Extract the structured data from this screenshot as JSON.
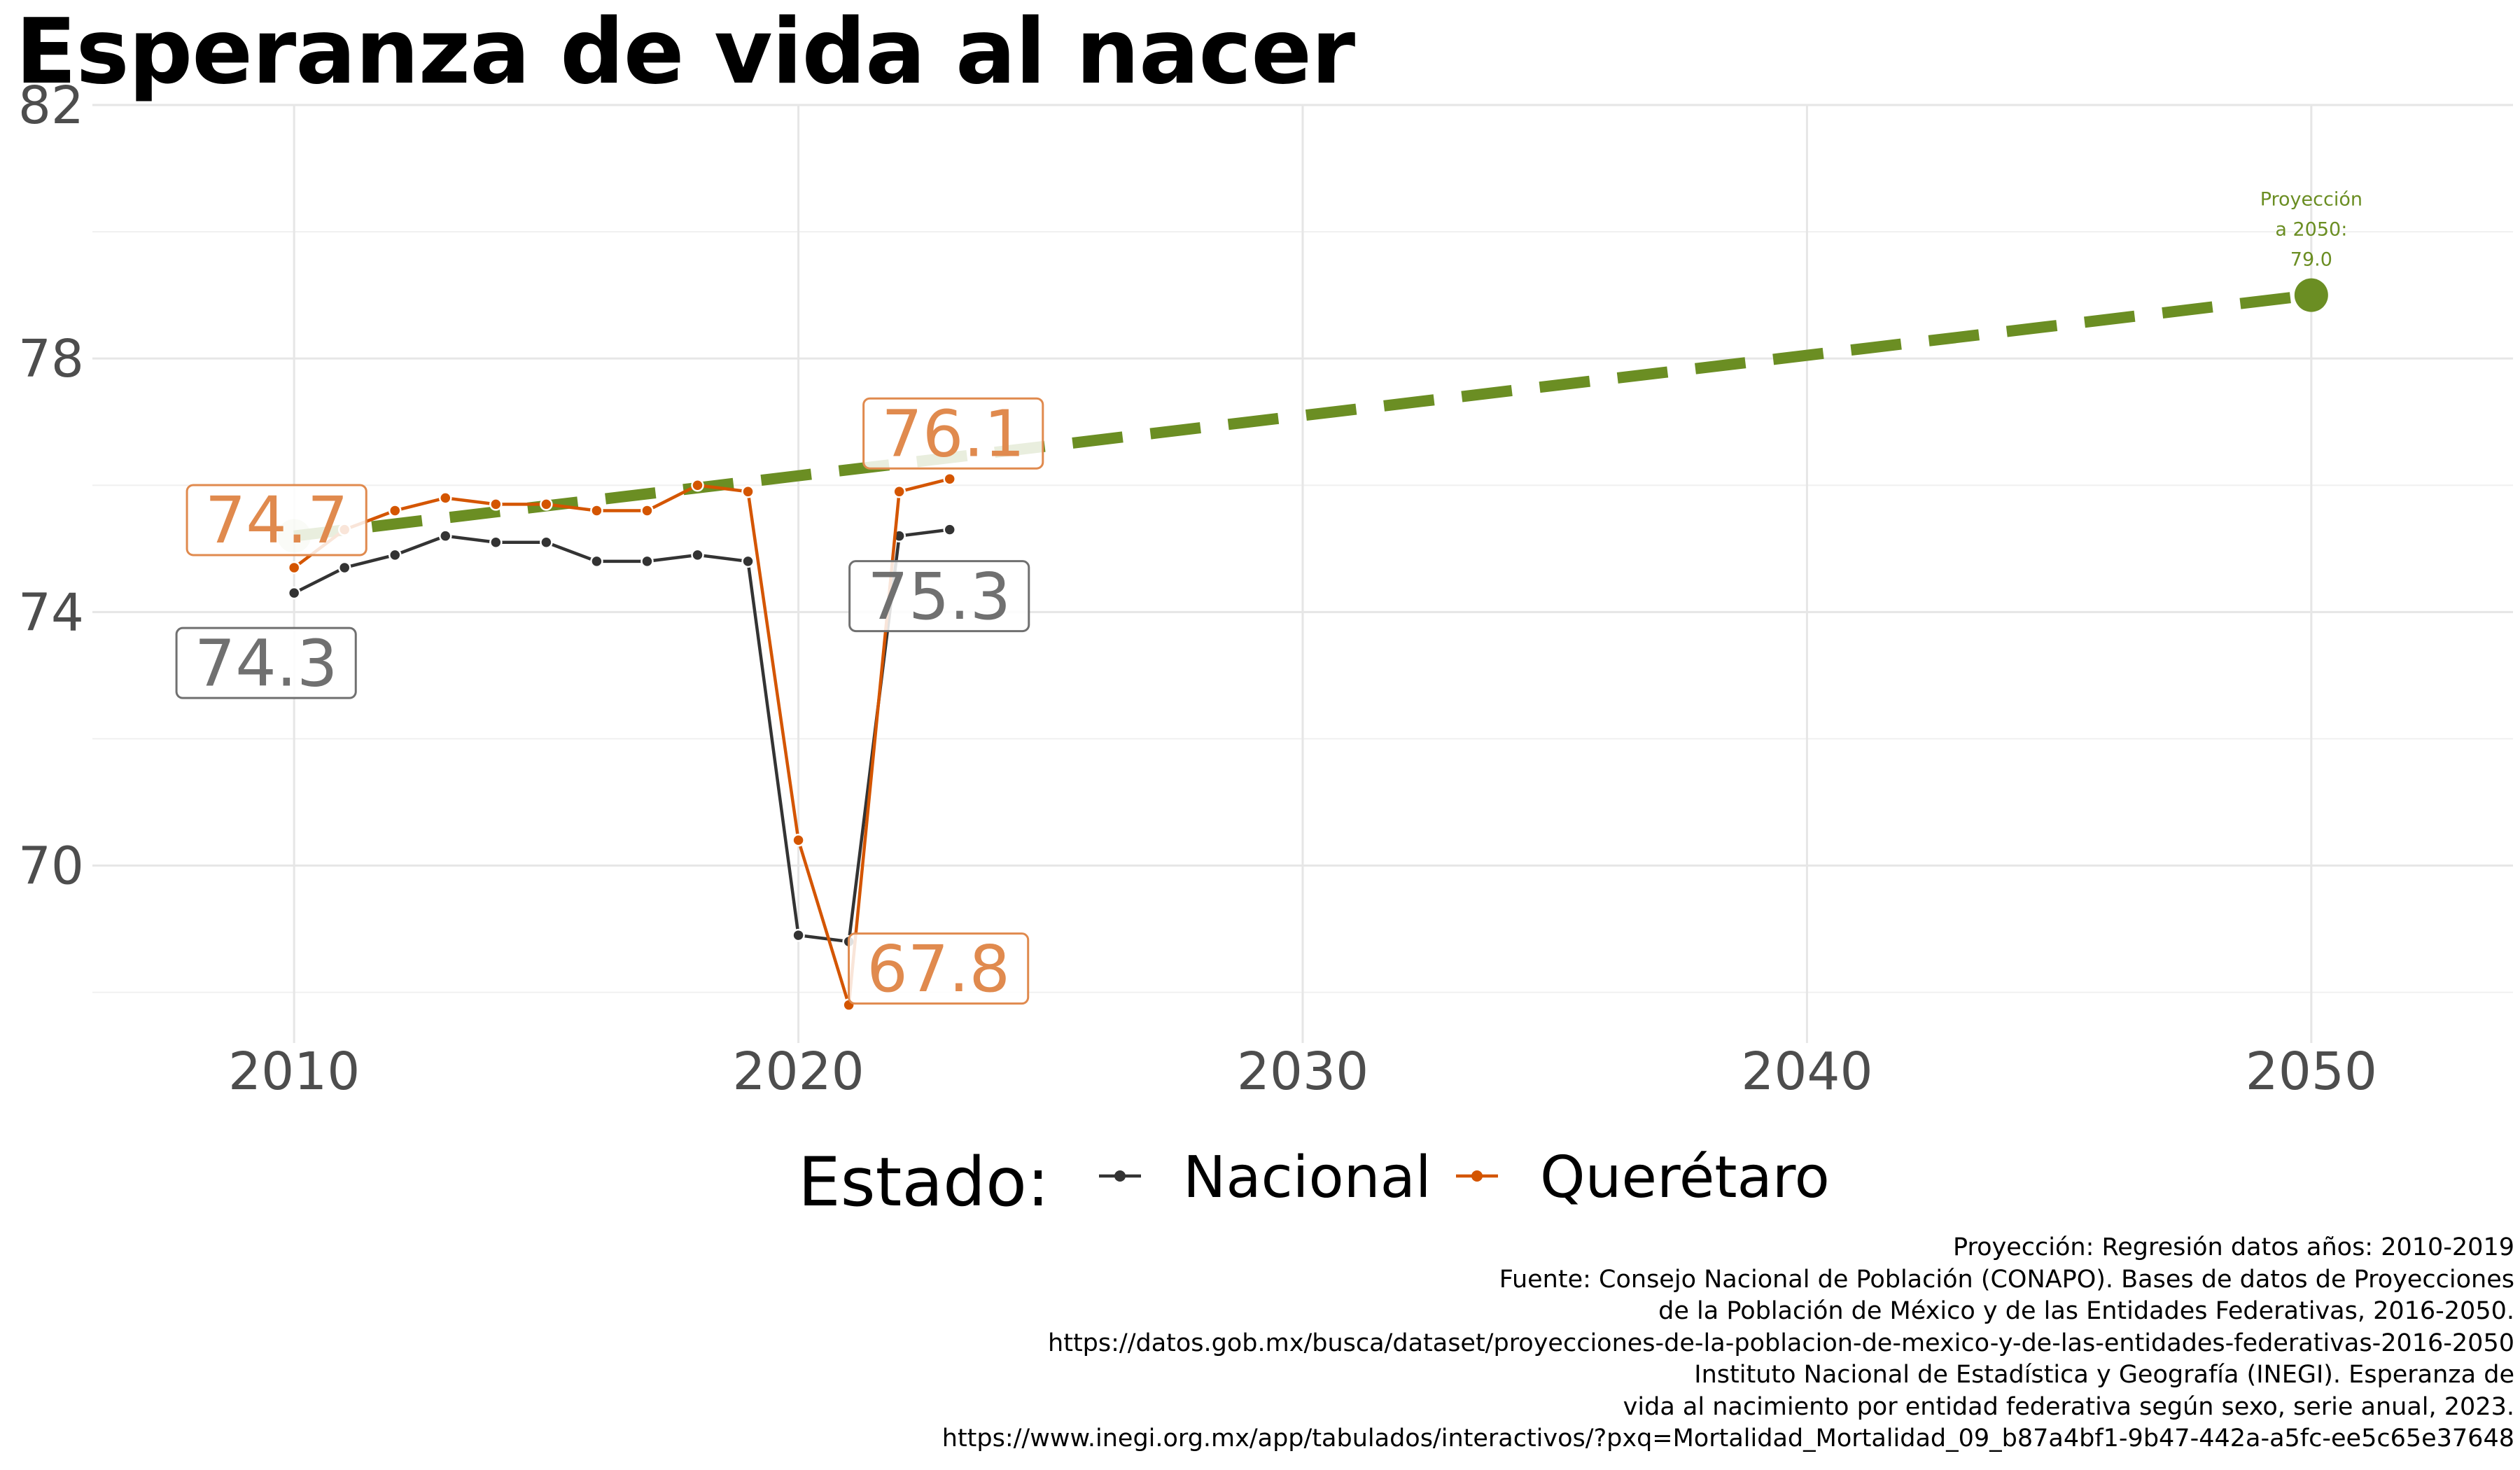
{
  "chart_data": {
    "type": "line",
    "title": "Esperanza de vida al nacer",
    "xlabel": "",
    "ylabel": "",
    "x_ticks": [
      2010,
      2020,
      2030,
      2040,
      2050
    ],
    "y_ticks": [
      70,
      74,
      78,
      82
    ],
    "xlim": [
      2006,
      2054
    ],
    "ylim": [
      67.2,
      82
    ],
    "grid": true,
    "series": [
      {
        "name": "Nacional",
        "color": "#333333",
        "x": [
          2010,
          2011,
          2012,
          2013,
          2014,
          2015,
          2016,
          2017,
          2018,
          2019,
          2020,
          2021,
          2022,
          2023
        ],
        "values": [
          74.3,
          74.7,
          74.9,
          75.2,
          75.1,
          75.1,
          74.8,
          74.8,
          74.9,
          74.8,
          68.9,
          68.8,
          75.2,
          75.3
        ]
      },
      {
        "name": "Querétaro",
        "color": "#d45500",
        "x": [
          2010,
          2011,
          2012,
          2013,
          2014,
          2015,
          2016,
          2017,
          2018,
          2019,
          2020,
          2021,
          2022,
          2023
        ],
        "values": [
          74.7,
          75.3,
          75.6,
          75.8,
          75.7,
          75.7,
          75.6,
          75.6,
          76.0,
          75.9,
          70.4,
          67.8,
          75.9,
          76.1
        ]
      }
    ],
    "projection": {
      "color": "#6b8e23",
      "x": [
        2010,
        2050
      ],
      "values": [
        75.2,
        79.0
      ],
      "annotation": [
        "Proyección",
        "a 2050:",
        "79.0"
      ]
    },
    "labels": [
      {
        "series": "Nacional",
        "x": 2010,
        "text": "74.3"
      },
      {
        "series": "Nacional",
        "x": 2023,
        "text": "75.3"
      },
      {
        "series": "Querétaro",
        "x": 2010,
        "text": "74.7"
      },
      {
        "series": "Querétaro",
        "x": 2021,
        "text": "67.8"
      },
      {
        "series": "Querétaro",
        "x": 2023,
        "text": "76.1"
      }
    ],
    "legend": {
      "title": "Estado:",
      "position": "bottom",
      "entries": [
        "Nacional",
        "Querétaro"
      ]
    }
  },
  "caption": [
    "Proyección: Regresión datos años: 2010-2019",
    "Fuente: Consejo Nacional de Población (CONAPO). Bases de datos de Proyecciones",
    "de la Población de México y de las Entidades Federativas, 2016-2050.",
    "https://datos.gob.mx/busca/dataset/proyecciones-de-la-poblacion-de-mexico-y-de-las-entidades-federativas-2016-2050",
    "Instituto Nacional de Estadística y Geografía (INEGI). Esperanza de",
    "vida al nacimiento por entidad federativa según sexo, serie anual, 2023.",
    "https://www.inegi.org.mx/app/tabulados/interactivos/?pxq=Mortalidad_Mortalidad_09_b87a4bf1-9b47-442a-a5fc-ee5c65e37648"
  ]
}
